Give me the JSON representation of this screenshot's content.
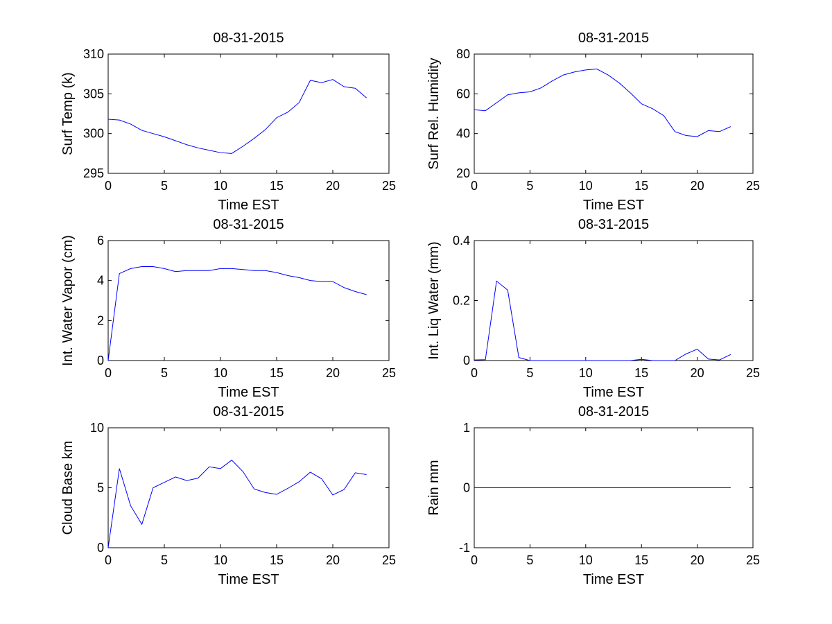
{
  "chart_data": [
    {
      "type": "line",
      "title": "08-31-2015",
      "xlabel": "Time EST",
      "ylabel": "Surf Temp (k)",
      "xlim": [
        0,
        25
      ],
      "ylim": [
        295,
        310
      ],
      "xticks": [
        0,
        5,
        10,
        15,
        20,
        25
      ],
      "yticks": [
        295,
        300,
        305,
        310
      ],
      "grid": false,
      "color": "#0000ff",
      "x": [
        0,
        1,
        2,
        3,
        4,
        5,
        6,
        7,
        8,
        9,
        10,
        11,
        12,
        13,
        14,
        15,
        16,
        17,
        18,
        19,
        20,
        21,
        22,
        23
      ],
      "y": [
        301.8,
        301.7,
        301.2,
        300.4,
        300.0,
        299.6,
        299.1,
        298.6,
        298.2,
        297.9,
        297.6,
        297.5,
        298.4,
        299.4,
        300.5,
        302.0,
        302.7,
        303.9,
        306.7,
        306.4,
        306.8,
        305.9,
        305.7,
        304.5
      ]
    },
    {
      "type": "line",
      "title": "08-31-2015",
      "xlabel": "Time EST",
      "ylabel": "Surf Rel. Humidity",
      "xlim": [
        0,
        25
      ],
      "ylim": [
        20,
        80
      ],
      "xticks": [
        0,
        5,
        10,
        15,
        20,
        25
      ],
      "yticks": [
        20,
        40,
        60,
        80
      ],
      "grid": false,
      "color": "#0000ff",
      "x": [
        0,
        1,
        2,
        3,
        4,
        5,
        6,
        7,
        8,
        9,
        10,
        11,
        12,
        13,
        14,
        15,
        16,
        17,
        18,
        19,
        20,
        21,
        22,
        23
      ],
      "y": [
        52.0,
        51.5,
        55.5,
        59.5,
        60.5,
        61.0,
        63.0,
        66.5,
        69.5,
        71.0,
        72.0,
        72.5,
        69.5,
        65.5,
        60.5,
        55.0,
        52.5,
        49.0,
        41.0,
        39.0,
        38.5,
        41.5,
        41.0,
        43.5
      ]
    },
    {
      "type": "line",
      "title": "08-31-2015",
      "xlabel": "Time EST",
      "ylabel": "Int. Water Vapor (cm)",
      "xlim": [
        0,
        25
      ],
      "ylim": [
        0,
        6
      ],
      "xticks": [
        0,
        5,
        10,
        15,
        20,
        25
      ],
      "yticks": [
        0,
        2,
        4,
        6
      ],
      "grid": false,
      "color": "#0000ff",
      "x": [
        0,
        1,
        2,
        3,
        4,
        5,
        6,
        7,
        8,
        9,
        10,
        11,
        12,
        13,
        14,
        15,
        16,
        17,
        18,
        19,
        20,
        21,
        22,
        23
      ],
      "y": [
        0.0,
        4.35,
        4.6,
        4.7,
        4.7,
        4.6,
        4.45,
        4.5,
        4.5,
        4.5,
        4.6,
        4.6,
        4.55,
        4.5,
        4.5,
        4.4,
        4.25,
        4.15,
        4.0,
        3.95,
        3.95,
        3.65,
        3.45,
        3.3
      ]
    },
    {
      "type": "line",
      "title": "08-31-2015",
      "xlabel": "Time EST",
      "ylabel": "Int. Liq Water (mm)",
      "xlim": [
        0,
        25
      ],
      "ylim": [
        0,
        0.4
      ],
      "xticks": [
        0,
        5,
        10,
        15,
        20,
        25
      ],
      "yticks": [
        0,
        0.2,
        0.4
      ],
      "grid": false,
      "color": "#0000ff",
      "x": [
        0,
        1,
        2,
        3,
        4,
        5,
        6,
        7,
        8,
        9,
        10,
        11,
        12,
        13,
        14,
        15,
        16,
        17,
        18,
        19,
        20,
        21,
        22,
        23
      ],
      "y": [
        0.002,
        0.003,
        0.265,
        0.235,
        0.01,
        0.0,
        0.0,
        0.0,
        0.0,
        0.0,
        0.0,
        0.0,
        0.0,
        0.0,
        0.0,
        0.004,
        0.0,
        0.0,
        0.0,
        0.022,
        0.038,
        0.005,
        0.002,
        0.02
      ]
    },
    {
      "type": "line",
      "title": "08-31-2015",
      "xlabel": "Time EST",
      "ylabel": "Cloud Base km",
      "xlim": [
        0,
        25
      ],
      "ylim": [
        0,
        10
      ],
      "xticks": [
        0,
        5,
        10,
        15,
        20,
        25
      ],
      "yticks": [
        0,
        5,
        10
      ],
      "grid": false,
      "color": "#0000ff",
      "x": [
        0,
        1,
        2,
        3,
        4,
        5,
        6,
        7,
        8,
        9,
        10,
        11,
        12,
        13,
        14,
        15,
        16,
        17,
        18,
        19,
        20,
        21,
        22,
        23
      ],
      "y": [
        0.0,
        6.6,
        3.5,
        1.95,
        5.0,
        5.45,
        5.9,
        5.6,
        5.8,
        6.75,
        6.6,
        7.3,
        6.35,
        4.9,
        4.6,
        4.45,
        4.95,
        5.5,
        6.3,
        5.75,
        4.4,
        4.85,
        6.25,
        6.1
      ]
    },
    {
      "type": "line",
      "title": "08-31-2015",
      "xlabel": "Time EST",
      "ylabel": "Rain mm",
      "xlim": [
        0,
        25
      ],
      "ylim": [
        -1,
        1
      ],
      "xticks": [
        0,
        5,
        10,
        15,
        20,
        25
      ],
      "yticks": [
        -1,
        0,
        1
      ],
      "grid": false,
      "color": "#0000ff",
      "x": [
        0,
        1,
        2,
        3,
        4,
        5,
        6,
        7,
        8,
        9,
        10,
        11,
        12,
        13,
        14,
        15,
        16,
        17,
        18,
        19,
        20,
        21,
        22,
        23
      ],
      "y": [
        0,
        0,
        0,
        0,
        0,
        0,
        0,
        0,
        0,
        0,
        0,
        0,
        0,
        0,
        0,
        0,
        0,
        0,
        0,
        0,
        0,
        0,
        0,
        0
      ]
    }
  ]
}
